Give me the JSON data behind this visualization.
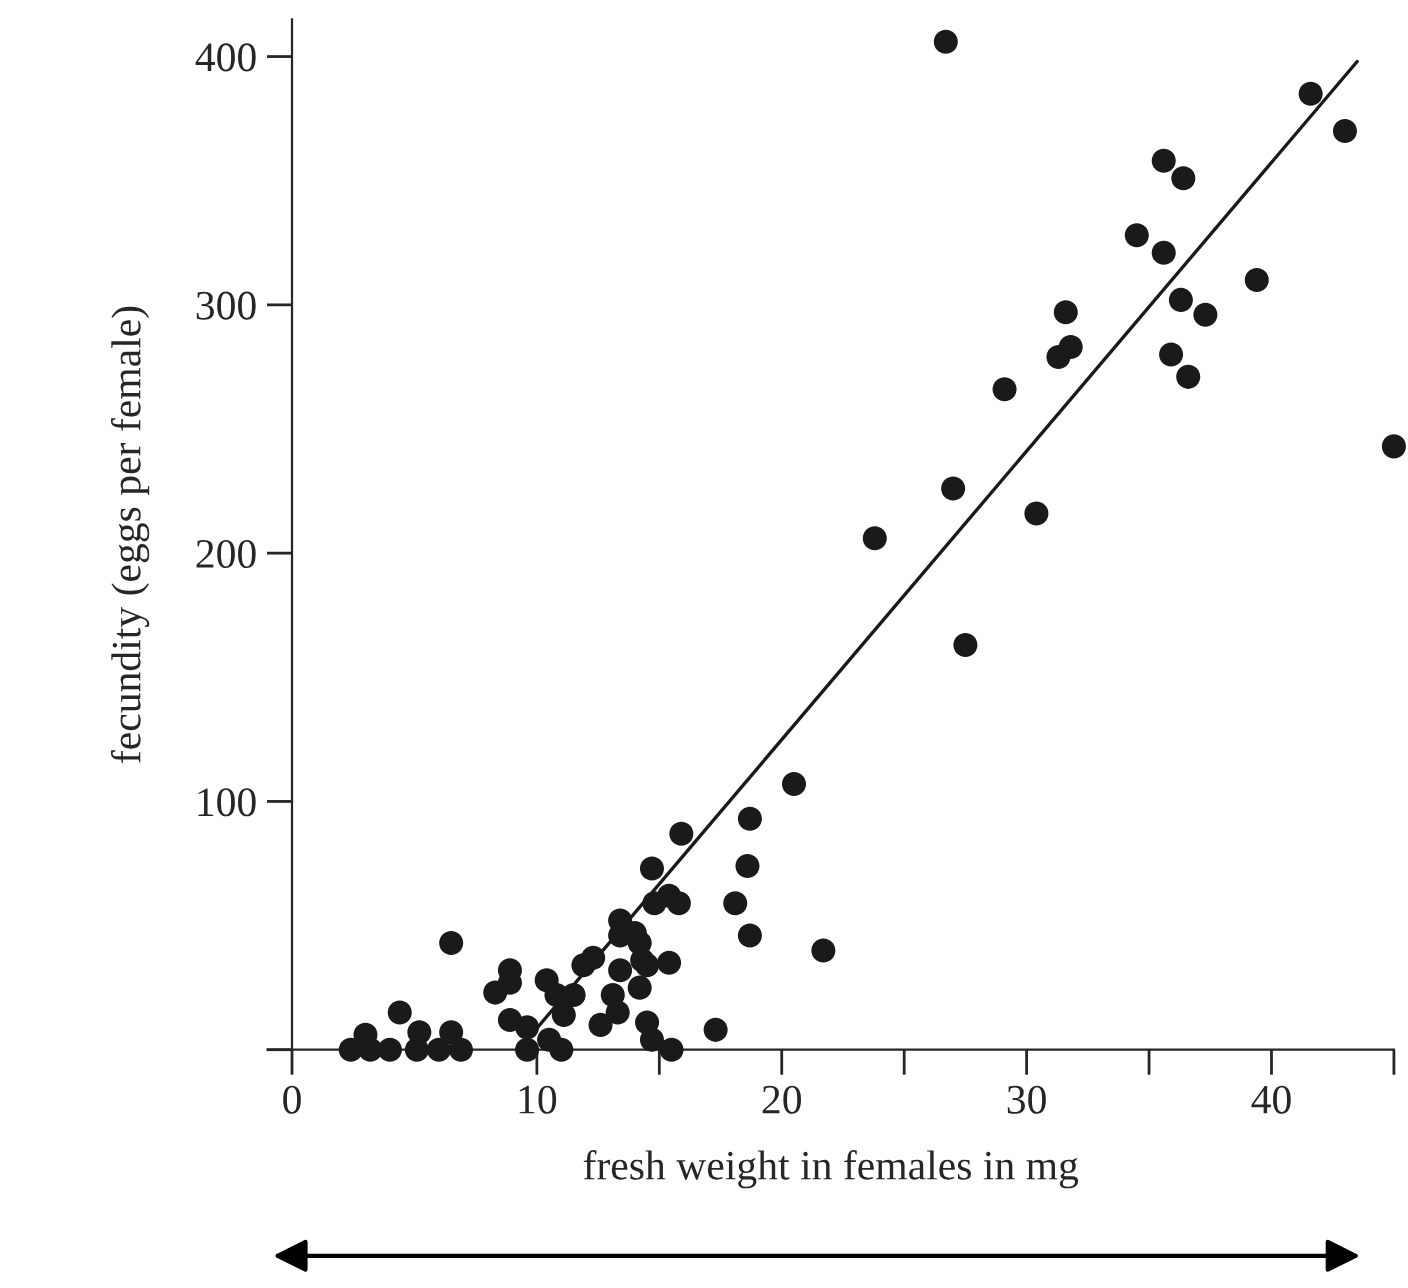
{
  "chart_data": {
    "type": "scatter",
    "xlabel": "fresh weight in females in mg",
    "ylabel": "fecundity (eggs per female)",
    "xlim": [
      -1,
      45
    ],
    "ylim": [
      0,
      415
    ],
    "xticks": [
      0,
      10,
      {
        "value": 15,
        "label": null
      },
      20,
      {
        "value": 25,
        "label": null
      },
      30,
      {
        "value": 35,
        "label": null
      },
      40,
      {
        "value": 45,
        "label": null
      }
    ],
    "yticks": [
      {
        "value": 0,
        "label": null
      },
      100,
      200,
      300,
      400
    ],
    "grid": false,
    "legend": false,
    "marker": "circle",
    "series": [
      {
        "color": "#1a1a1a",
        "x": [
          2.4,
          3.0,
          3.2,
          4.0,
          4.4,
          5.1,
          5.2,
          6.0,
          6.5,
          6.5,
          6.9,
          8.3,
          8.9,
          8.9,
          8.9,
          9.6,
          9.6,
          10.4,
          10.5,
          11.0,
          10.8,
          11.5,
          11.1,
          11.9,
          12.3,
          12.6,
          13.1,
          13.3,
          13.4,
          13.4,
          13.4,
          14.0,
          14.2,
          14.3,
          14.5,
          14.2,
          14.5,
          14.7,
          14.7,
          14.8,
          15.4,
          15.5,
          15.4,
          15.8,
          15.9,
          17.3,
          18.1,
          18.7,
          18.6,
          18.7,
          20.5,
          21.7,
          26.7,
          41.6,
          43.0,
          35.6,
          36.4,
          34.5,
          35.6,
          39.4,
          31.6,
          36.3,
          37.3,
          31.8,
          31.3,
          35.9,
          36.6,
          29.1,
          45.0,
          27.0,
          23.8,
          30.4,
          27.5
        ],
        "values": [
          0,
          6,
          0,
          0,
          15,
          0,
          7,
          0,
          7,
          43,
          0,
          23,
          32,
          27,
          12,
          0,
          9,
          28,
          4,
          0,
          22,
          22,
          14,
          34,
          37,
          10,
          22,
          15,
          32,
          52,
          46,
          47,
          43,
          36,
          34,
          25,
          11,
          4,
          73,
          59,
          35,
          0,
          62,
          59,
          87,
          8,
          59,
          46,
          74,
          93,
          107,
          40,
          406,
          385,
          370,
          358,
          351,
          328,
          321,
          310,
          297,
          302,
          296,
          283,
          279,
          280,
          271,
          266,
          243,
          226,
          206,
          216,
          163
        ]
      },
      {
        "type": "line",
        "color": "#1a1a1a",
        "marker": "none",
        "x": [
          9.6,
          43.5
        ],
        "values": [
          4,
          398
        ]
      }
    ]
  }
}
